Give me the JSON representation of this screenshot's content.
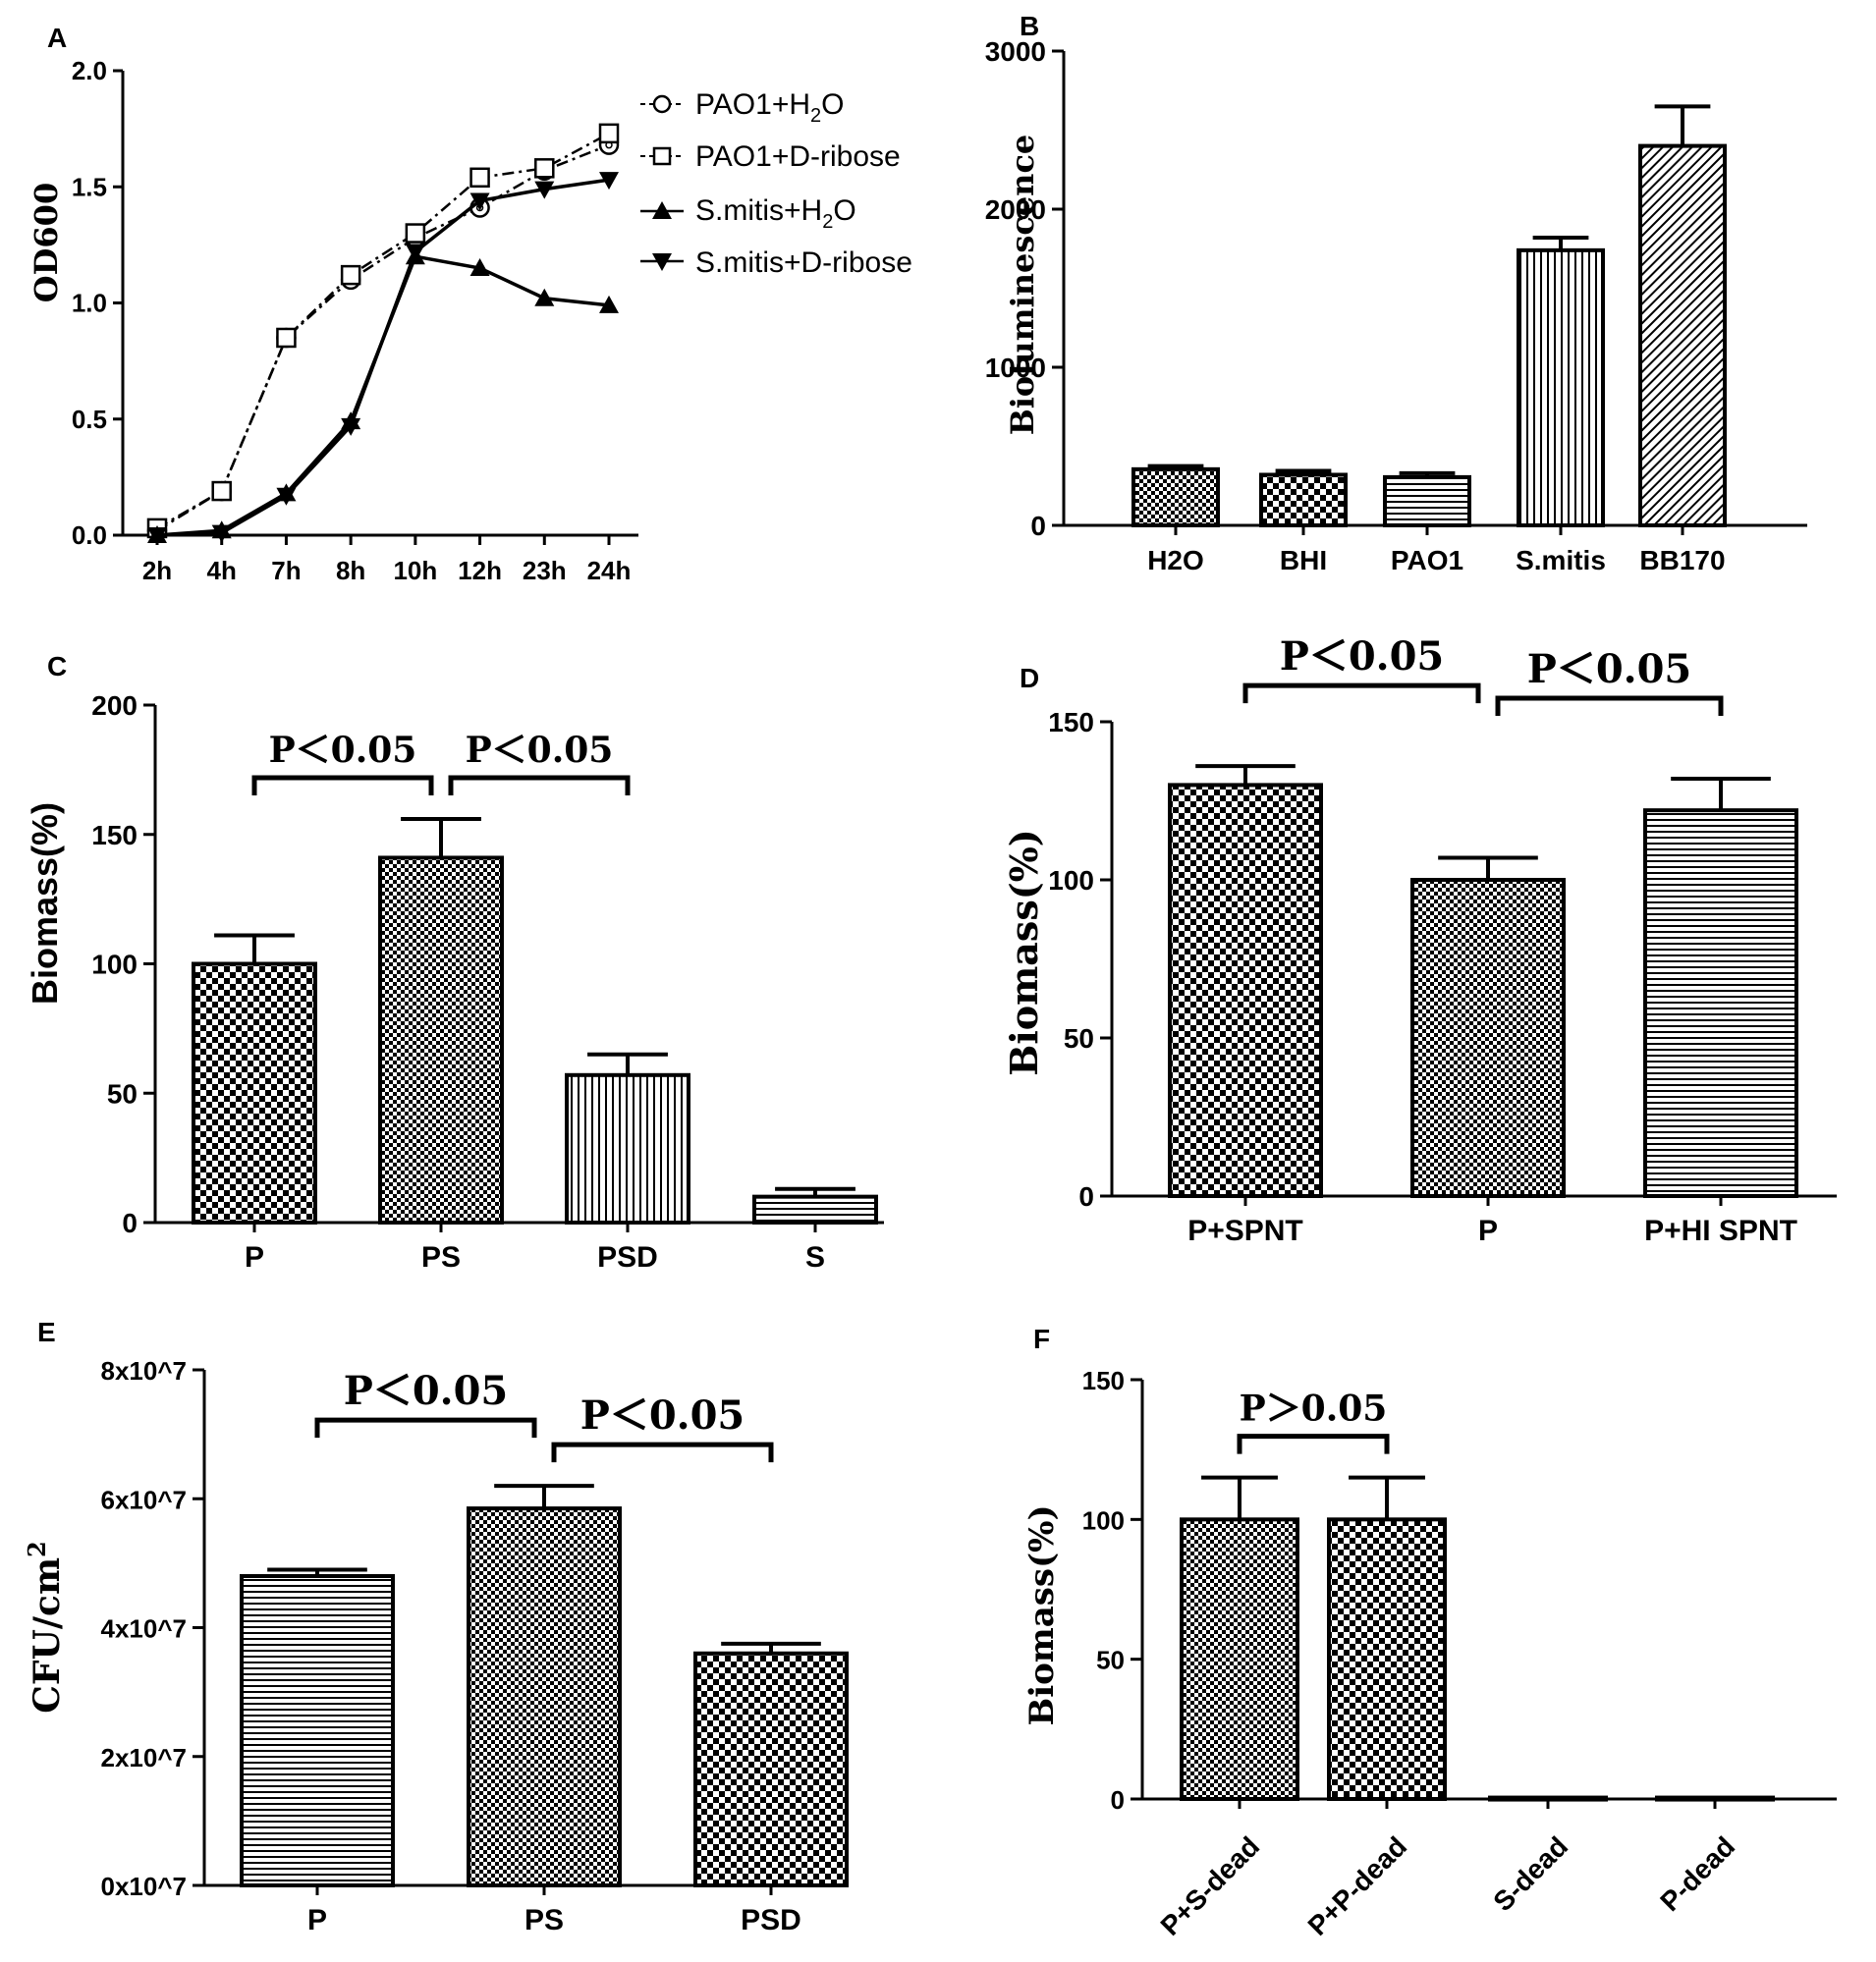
{
  "figure": {
    "panels": [
      "A",
      "B",
      "C",
      "D",
      "E",
      "F"
    ]
  },
  "chart_data": [
    {
      "id": "A",
      "type": "line",
      "title": "",
      "xlabel": "",
      "ylabel": "OD600",
      "categories": [
        "2h",
        "4h",
        "7h",
        "8h",
        "10h",
        "12h",
        "23h",
        "24h"
      ],
      "ylim": [
        0,
        2.0
      ],
      "yticks": [
        "0.0",
        "0.5",
        "1.0",
        "1.5",
        "2.0"
      ],
      "legend_position": "top-right",
      "series": [
        {
          "name": "PAO1+H2O",
          "marker": "circle-open",
          "dashed": true,
          "values": [
            0.02,
            0.19,
            0.85,
            1.1,
            1.28,
            1.41,
            1.57,
            1.68
          ]
        },
        {
          "name": "PAO1+D-ribose",
          "marker": "square-open",
          "dashed": true,
          "values": [
            0.03,
            0.19,
            0.85,
            1.12,
            1.3,
            1.54,
            1.58,
            1.73
          ]
        },
        {
          "name": "S.mitis+H2O",
          "marker": "triangle-up",
          "dashed": false,
          "values": [
            0.0,
            0.02,
            0.18,
            0.49,
            1.2,
            1.15,
            1.02,
            0.99
          ]
        },
        {
          "name": "S.mitis+D-ribose",
          "marker": "triangle-down",
          "dashed": false,
          "values": [
            0.0,
            0.01,
            0.17,
            0.47,
            1.22,
            1.44,
            1.49,
            1.53
          ]
        }
      ],
      "legend": [
        "PAO1+H",
        "2",
        "O",
        "PAO1+D-ribose",
        "S.mitis+H",
        "2",
        "O",
        "S.mitis+D-ribose"
      ]
    },
    {
      "id": "B",
      "type": "bar",
      "title": "",
      "ylabel": "Bioluminescence",
      "categories": [
        "H2O",
        "BHI",
        "PAO1",
        "S.mitis",
        "BB170"
      ],
      "values": [
        355,
        320,
        305,
        1740,
        2400
      ],
      "errors": [
        20,
        25,
        25,
        80,
        250
      ],
      "patterns": [
        "checker-small",
        "checker-large",
        "h-lines",
        "v-lines",
        "diagonal"
      ],
      "ylim": [
        0,
        3000
      ],
      "yticks": [
        "0",
        "1000",
        "2000",
        "3000"
      ]
    },
    {
      "id": "C",
      "type": "bar",
      "title": "",
      "ylabel": "Biomass(%)",
      "categories": [
        "P",
        "PS",
        "PSD",
        "S"
      ],
      "values": [
        100,
        141,
        57,
        10
      ],
      "errors": [
        11,
        15,
        8,
        3
      ],
      "patterns": [
        "checker-large",
        "checker-small",
        "v-lines",
        "h-lines"
      ],
      "ylim": [
        0,
        200
      ],
      "yticks": [
        "0",
        "50",
        "100",
        "150",
        "200"
      ],
      "annotations": [
        {
          "from": 0,
          "to": 1,
          "text": "P＜0.05"
        },
        {
          "from": 1,
          "to": 2,
          "text": "P＜0.05"
        }
      ]
    },
    {
      "id": "D",
      "type": "bar",
      "title": "",
      "ylabel": "Biomass(%)",
      "categories": [
        "P+SPNT",
        "P",
        "P+HI SPNT"
      ],
      "values": [
        130,
        100,
        122
      ],
      "errors": [
        6,
        7,
        10
      ],
      "patterns": [
        "checker-large",
        "checker-small",
        "h-lines"
      ],
      "ylim": [
        0,
        150
      ],
      "yticks": [
        "0",
        "50",
        "100",
        "150"
      ],
      "annotations": [
        {
          "from": 0,
          "to": 1,
          "text": "P＜0.05"
        },
        {
          "from": 1,
          "to": 2,
          "text": "P＜0.05"
        }
      ]
    },
    {
      "id": "E",
      "type": "bar",
      "title": "",
      "ylabel": "CFU/cm",
      "ylabel_superscript": "2",
      "categories": [
        "P",
        "PS",
        "PSD"
      ],
      "values": [
        48000000,
        58500000,
        36000000
      ],
      "errors": [
        1000000,
        3500000,
        1500000
      ],
      "patterns": [
        "h-lines",
        "checker-small",
        "checker-large"
      ],
      "ylim": [
        0,
        80000000
      ],
      "yticks": [
        "0x10^7",
        "2x10^7",
        "4x10^7",
        "6x10^7",
        "8x10^7"
      ],
      "annotations": [
        {
          "from": 0,
          "to": 1,
          "text": "P＜0.05"
        },
        {
          "from": 1,
          "to": 2,
          "text": "P＜0.05"
        }
      ]
    },
    {
      "id": "F",
      "type": "bar",
      "title": "",
      "ylabel": "Biomass(%)",
      "categories": [
        "P+S-dead",
        "P+P-dead",
        "S-dead",
        "P-dead"
      ],
      "values": [
        100,
        100,
        0.5,
        0.5
      ],
      "errors": [
        15,
        15,
        0,
        0
      ],
      "patterns": [
        "checker-small",
        "checker-large",
        "checker-small",
        "checker-small"
      ],
      "ylim": [
        0,
        150
      ],
      "yticks": [
        "0",
        "50",
        "100",
        "150"
      ],
      "annotations": [
        {
          "from": 0,
          "to": 1,
          "text": "P＞0.05"
        }
      ]
    }
  ]
}
